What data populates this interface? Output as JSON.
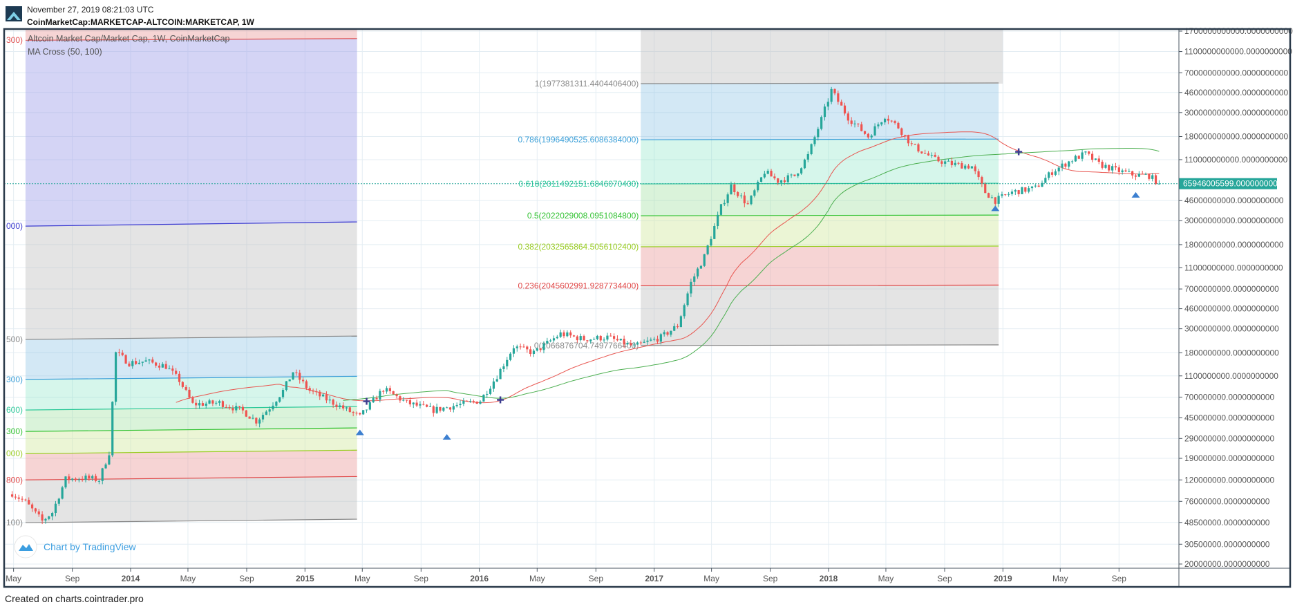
{
  "header": {
    "timestamp": "November 27, 2019 08:21:03 UTC",
    "symbol_title": "CoinMarketCap:MARKETCAP-ALTCOIN:MARKETCAP, 1W"
  },
  "legend": {
    "title": "Altcoin Market Cap/Market Cap, 1W, CoinMarketCap",
    "indicator": "MA Cross (50, 100)"
  },
  "watermark": "Chart by TradingView",
  "footer": "Created on charts.cointrader.pro",
  "colors": {
    "up": "#26a69a",
    "down": "#ef5350",
    "ma_fast": "#e8554f",
    "ma_slow": "#4caf50",
    "price_label": "#26a69a",
    "cross_marker": "#3d3d8f",
    "triangle_marker": "#3c7fd0",
    "frame": "#2a3a4a"
  },
  "chart_data": {
    "type": "candlestick",
    "title": "Altcoin Market Cap/Market Cap, 1W, CoinMarketCap",
    "interval": "1W",
    "y_scale": "log",
    "ylim": [
      20000000,
      1700000000000
    ],
    "grid": true,
    "y_ticks": [
      {
        "value": 1700000000000,
        "label": "1700000000000.0000000000"
      },
      {
        "value": 1100000000000,
        "label": "1100000000000.0000000000"
      },
      {
        "value": 700000000000,
        "label": "700000000000.0000000000"
      },
      {
        "value": 460000000000,
        "label": "460000000000.0000000000"
      },
      {
        "value": 300000000000,
        "label": "300000000000.0000000000"
      },
      {
        "value": 180000000000,
        "label": "180000000000.0000000000"
      },
      {
        "value": 110000000000,
        "label": "110000000000.0000000000"
      },
      {
        "value": 46000000000,
        "label": "46000000000.0000000000"
      },
      {
        "value": 30000000000,
        "label": "30000000000.0000000000"
      },
      {
        "value": 18000000000,
        "label": "18000000000.0000000000"
      },
      {
        "value": 11000000000,
        "label": "11000000000.0000000000"
      },
      {
        "value": 7000000000,
        "label": "7000000000.0000000000"
      },
      {
        "value": 4600000000,
        "label": "4600000000.0000000000"
      },
      {
        "value": 3000000000,
        "label": "3000000000.0000000000"
      },
      {
        "value": 1800000000,
        "label": "1800000000.0000000000"
      },
      {
        "value": 1100000000,
        "label": "1100000000.0000000000"
      },
      {
        "value": 700000000,
        "label": "700000000.0000000000"
      },
      {
        "value": 450000000,
        "label": "450000000.0000000000"
      },
      {
        "value": 290000000,
        "label": "290000000.0000000000"
      },
      {
        "value": 190000000,
        "label": "190000000.0000000000"
      },
      {
        "value": 120000000,
        "label": "120000000.0000000000"
      },
      {
        "value": 76000000,
        "label": "76000000.0000000000"
      },
      {
        "value": 48500000,
        "label": "48500000.0000000000"
      },
      {
        "value": 30500000,
        "label": "30500000.0000000000"
      },
      {
        "value": 20000000,
        "label": "20000000.0000000000"
      }
    ],
    "x_ticks": [
      {
        "date": "2013-05-01",
        "label": "May",
        "bold": false
      },
      {
        "date": "2013-09-01",
        "label": "Sep",
        "bold": false
      },
      {
        "date": "2014-01-01",
        "label": "2014",
        "bold": true
      },
      {
        "date": "2014-05-01",
        "label": "May",
        "bold": false
      },
      {
        "date": "2014-09-01",
        "label": "Sep",
        "bold": false
      },
      {
        "date": "2015-01-01",
        "label": "2015",
        "bold": true
      },
      {
        "date": "2015-05-01",
        "label": "May",
        "bold": false
      },
      {
        "date": "2015-09-01",
        "label": "Sep",
        "bold": false
      },
      {
        "date": "2016-01-01",
        "label": "2016",
        "bold": true
      },
      {
        "date": "2016-05-01",
        "label": "May",
        "bold": false
      },
      {
        "date": "2016-09-01",
        "label": "Sep",
        "bold": false
      },
      {
        "date": "2017-01-01",
        "label": "2017",
        "bold": true
      },
      {
        "date": "2017-05-01",
        "label": "May",
        "bold": false
      },
      {
        "date": "2017-09-01",
        "label": "Sep",
        "bold": false
      },
      {
        "date": "2018-01-01",
        "label": "2018",
        "bold": true
      },
      {
        "date": "2018-05-01",
        "label": "May",
        "bold": false
      },
      {
        "date": "2018-09-01",
        "label": "Sep",
        "bold": false
      },
      {
        "date": "2019-01-01",
        "label": "2019",
        "bold": true
      },
      {
        "date": "2019-05-01",
        "label": "May",
        "bold": false
      },
      {
        "date": "2019-09-01",
        "label": "Sep",
        "bold": false
      }
    ],
    "price_path": [
      [
        "2013-04-28",
        90000000
      ],
      [
        "2013-05-26",
        75000000
      ],
      [
        "2013-06-30",
        50000000
      ],
      [
        "2013-07-21",
        60000000
      ],
      [
        "2013-08-18",
        122000000
      ],
      [
        "2013-09-29",
        125000000
      ],
      [
        "2013-10-27",
        120000000
      ],
      [
        "2013-11-17",
        215000000
      ],
      [
        "2013-12-01",
        1800000000
      ],
      [
        "2013-12-29",
        1450000000
      ],
      [
        "2014-02-02",
        1500000000
      ],
      [
        "2014-03-16",
        1350000000
      ],
      [
        "2014-04-13",
        1000000000
      ],
      [
        "2014-05-11",
        600000000
      ],
      [
        "2014-07-06",
        620000000
      ],
      [
        "2014-08-24",
        520000000
      ],
      [
        "2014-09-21",
        420000000
      ],
      [
        "2014-10-19",
        560000000
      ],
      [
        "2014-11-16",
        800000000
      ],
      [
        "2014-12-07",
        1200000000
      ],
      [
        "2015-01-11",
        800000000
      ],
      [
        "2015-03-01",
        620000000
      ],
      [
        "2015-04-26",
        460000000
      ],
      [
        "2015-06-14",
        830000000
      ],
      [
        "2015-08-02",
        620000000
      ],
      [
        "2015-09-27",
        530000000
      ],
      [
        "2015-11-15",
        590000000
      ],
      [
        "2016-01-03",
        650000000
      ],
      [
        "2016-02-07",
        1100000000
      ],
      [
        "2016-03-13",
        2050000000
      ],
      [
        "2016-04-24",
        1800000000
      ],
      [
        "2016-06-19",
        2700000000
      ],
      [
        "2016-08-07",
        2400000000
      ],
      [
        "2016-09-25",
        2500000000
      ],
      [
        "2016-11-20",
        2050000000
      ],
      [
        "2017-01-15",
        2500000000
      ],
      [
        "2017-02-19",
        3200000000
      ],
      [
        "2017-03-19",
        8000000000
      ],
      [
        "2017-04-16",
        14000000000
      ],
      [
        "2017-05-21",
        40000000000
      ],
      [
        "2017-06-11",
        63000000000
      ],
      [
        "2017-07-16",
        42000000000
      ],
      [
        "2017-08-20",
        85000000000
      ],
      [
        "2017-09-17",
        70000000000
      ],
      [
        "2017-10-22",
        78000000000
      ],
      [
        "2017-11-19",
        120000000000
      ],
      [
        "2017-12-17",
        260000000000
      ],
      [
        "2018-01-07",
        480000000000
      ],
      [
        "2018-01-21",
        380000000000
      ],
      [
        "2018-02-11",
        270000000000
      ],
      [
        "2018-03-25",
        180000000000
      ],
      [
        "2018-04-29",
        280000000000
      ],
      [
        "2018-05-27",
        220000000000
      ],
      [
        "2018-06-24",
        150000000000
      ],
      [
        "2018-08-12",
        110000000000
      ],
      [
        "2018-09-16",
        100000000000
      ],
      [
        "2018-10-28",
        95000000000
      ],
      [
        "2018-11-25",
        55000000000
      ],
      [
        "2018-12-16",
        46000000000
      ],
      [
        "2019-01-20",
        55000000000
      ],
      [
        "2019-03-10",
        60000000000
      ],
      [
        "2019-04-14",
        85000000000
      ],
      [
        "2019-05-26",
        110000000000
      ],
      [
        "2019-06-23",
        125000000000
      ],
      [
        "2019-07-21",
        100000000000
      ],
      [
        "2019-08-25",
        88000000000
      ],
      [
        "2019-09-29",
        80000000000
      ],
      [
        "2019-11-03",
        78000000000
      ],
      [
        "2019-11-24",
        65946005599
      ]
    ],
    "current_value": 65946005599,
    "current_label": "65946005599.0000000000",
    "moving_averages": [
      {
        "period": 50,
        "color": "#e8554f"
      },
      {
        "period": 100,
        "color": "#4caf50"
      }
    ],
    "ma_cross_markers": [
      {
        "date": "2015-05-10",
        "value": 640000000
      },
      {
        "date": "2016-02-14",
        "value": 660000000
      },
      {
        "date": "2019-02-03",
        "value": 130000000000
      }
    ],
    "triangle_markers": [
      {
        "date": "2015-04-26",
        "value": 330000000
      },
      {
        "date": "2015-10-25",
        "value": 300000000
      },
      {
        "date": "2018-12-16",
        "value": 39000000000
      },
      {
        "date": "2019-10-06",
        "value": 52000000000
      }
    ],
    "fib_left": {
      "start": "2013-05-26",
      "end": "2015-04-20",
      "levels": [
        {
          "label": "300)",
          "color": "#e05050",
          "values": [
            1400000000000,
            1450000000000
          ],
          "fill": "rgba(236,160,160,0.45)"
        },
        {
          "label": "000)",
          "color": "#3a3ad0",
          "values": [
            26700000000,
            29200000000
          ],
          "fill": "rgba(160,160,232,0.45)"
        },
        {
          "label": "500)",
          "color": "#888888",
          "values": [
            2390000000,
            2570000000
          ],
          "fill": "rgba(190,190,190,0.42)"
        },
        {
          "label": "300)",
          "color": "#3b9fd8",
          "values": [
            1020000000,
            1090000000
          ],
          "fill": "rgba(130,190,225,0.35)"
        },
        {
          "label": "600)",
          "color": "#2ec99a",
          "values": [
            532000000,
            573000000
          ],
          "fill": "rgba(120,225,190,0.3)"
        },
        {
          "label": "300)",
          "color": "#32c232",
          "values": [
            337000000,
            363000000
          ],
          "fill": "rgba(150,220,150,0.35)"
        },
        {
          "label": "000)",
          "color": "#99cc22",
          "values": [
            210000000,
            226000000
          ],
          "fill": "rgba(205,230,150,0.4)"
        },
        {
          "label": "800)",
          "color": "#e04848",
          "values": [
            120000000,
            129000000
          ],
          "fill": "rgba(236,160,160,0.45)"
        },
        {
          "label": "100)",
          "color": "#888888",
          "values": [
            48300000,
            52000000
          ],
          "fill": "rgba(190,190,190,0.42)"
        }
      ]
    },
    "fib_right": {
      "start": "2016-12-04",
      "end": "2018-12-23",
      "levels": [
        {
          "label": "1(1977381311.4404406400)",
          "color": "#888888",
          "value": 555000000000,
          "fill": "rgba(130,190,225,0.35)"
        },
        {
          "label": "0.786(1996490525.6086384000)",
          "color": "#3b9fd8",
          "value": 168000000000,
          "fill": "rgba(120,225,190,0.3)"
        },
        {
          "label": "0.618(2011492151.6846070400)",
          "color": "#2ec99a",
          "value": 65600000000,
          "fill": "rgba(150,220,150,0.35)"
        },
        {
          "label": "0.5(2022029008.0951084800)",
          "color": "#32c232",
          "value": 33300000000,
          "fill": "rgba(205,230,150,0.4)"
        },
        {
          "label": "0.382(2032565864.5056102400)",
          "color": "#99cc22",
          "value": 17200000000,
          "fill": "rgba(236,160,160,0.45)"
        },
        {
          "label": "0.236(2045602991.9287734400)",
          "color": "#e04848",
          "value": 7500000000,
          "fill": "rgba(190,190,190,0.42)"
        },
        {
          "label": "0(2066876704.7497766400)",
          "color": "#888888",
          "value": 2100000000,
          "fill": null
        }
      ]
    }
  }
}
